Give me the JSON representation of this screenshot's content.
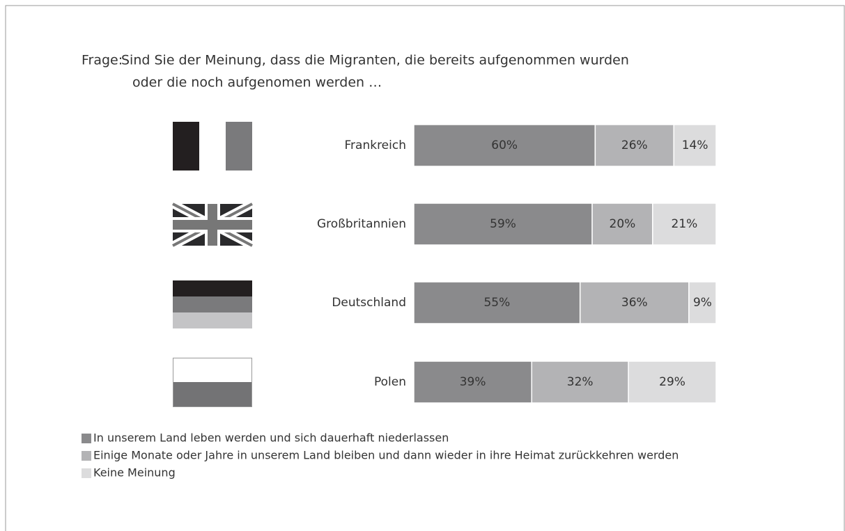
{
  "chart_data": {
    "type": "stacked-bar",
    "orientation": "horizontal",
    "title_label": "Frage:",
    "title_lines": [
      "Sind Sie der Meinung, dass die Migranten, die bereits aufgenommen wurden",
      "oder die noch aufgenomen werden …"
    ],
    "categories": [
      "Frankreich",
      "Großbritannien",
      "Deutschland",
      "Polen"
    ],
    "xlim": [
      0,
      100
    ],
    "series": [
      {
        "name": "In unserem Land leben werden und sich dauerhaft niederlassen",
        "color": "#8a8a8c",
        "values": [
          60,
          59,
          55,
          39
        ],
        "value_labels": [
          "60%",
          "59%",
          "55%",
          "39%"
        ]
      },
      {
        "name": "Einige Monate oder Jahre in unserem Land bleiben und dann wieder in ihre Heimat zurückkehren werden",
        "color": "#b3b3b5",
        "values": [
          26,
          20,
          36,
          32
        ],
        "value_labels": [
          "26%",
          "20%",
          "36%",
          "32%"
        ]
      },
      {
        "name": "Keine Meinung",
        "color": "#dcdcdd",
        "values": [
          14,
          21,
          9,
          29
        ],
        "value_labels": [
          "14%",
          "21%",
          "9%",
          "29%"
        ]
      }
    ]
  }
}
